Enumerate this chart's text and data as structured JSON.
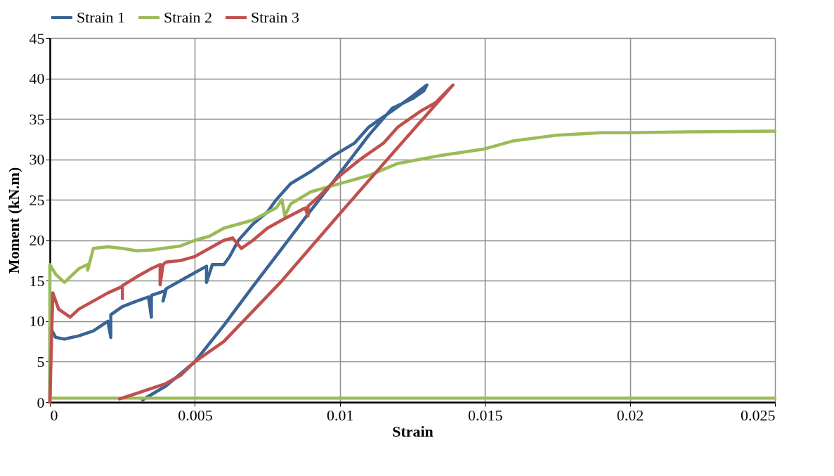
{
  "chart_data": {
    "type": "line",
    "xlabel": "Strain",
    "ylabel": "Moment (kN.m)",
    "xlim": [
      0,
      0.025
    ],
    "ylim": [
      0,
      45
    ],
    "xticks": [
      0,
      0.005,
      0.01,
      0.015,
      0.02,
      0.025
    ],
    "yticks": [
      0,
      5,
      10,
      15,
      20,
      25,
      30,
      35,
      40,
      45
    ],
    "grid": true,
    "legend": "top",
    "series": [
      {
        "name": "Strain 1",
        "color": "#3a6496",
        "x": [
          0,
          0,
          0.0002,
          0.0005,
          0.001,
          0.0015,
          0.002,
          0.0021,
          0.0021,
          0.0025,
          0.003,
          0.0034,
          0.0035,
          0.0035,
          0.004,
          0.0039,
          0.004,
          0.0045,
          0.005,
          0.0054,
          0.0054,
          0.0056,
          0.006,
          0.0062,
          0.0065,
          0.007,
          0.0072,
          0.0075,
          0.0078,
          0.0083,
          0.009,
          0.0098,
          0.0105,
          0.011,
          0.0118,
          0.0125,
          0.013,
          0.0129,
          0.0125,
          0.0118,
          0.011,
          0.01,
          0.009,
          0.008,
          0.007,
          0.006,
          0.005,
          0.0045,
          0.004,
          0.0032
        ],
        "values": [
          0,
          9.3,
          8,
          7.8,
          8.2,
          8.8,
          10,
          8,
          10.8,
          11.8,
          12.5,
          13,
          10.5,
          13.2,
          13.8,
          12.5,
          14,
          15,
          16,
          16.8,
          14.8,
          17,
          17,
          18,
          20,
          22,
          22.6,
          23.5,
          25,
          27,
          28.5,
          30.5,
          32,
          34,
          36,
          37.8,
          39.2,
          38.5,
          37.5,
          36.3,
          33,
          28.3,
          23.7,
          19,
          14.3,
          9.5,
          5,
          3.5,
          2,
          0.3
        ]
      },
      {
        "name": "Strain 2",
        "color": "#9bbb59",
        "x": [
          0.025,
          0,
          0,
          0.0002,
          0.0005,
          0.001,
          0.0013,
          0.0013,
          0.0015,
          0.002,
          0.0025,
          0.003,
          0.0035,
          0.0045,
          0.005,
          0.0055,
          0.006,
          0.007,
          0.0078,
          0.008,
          0.0081,
          0.0083,
          0.009,
          0.01,
          0.011,
          0.012,
          0.0135,
          0.015,
          0.016,
          0.0175,
          0.019,
          0.02,
          0.022,
          0.025
        ],
        "values": [
          0.5,
          0.5,
          17,
          15.8,
          14.8,
          16.5,
          17,
          16.3,
          19,
          19.2,
          19,
          18.7,
          18.8,
          19.3,
          20,
          20.5,
          21.5,
          22.5,
          24,
          25,
          23,
          24.5,
          26,
          27,
          28,
          29.5,
          30.5,
          31.3,
          32.3,
          33,
          33.3,
          33.3,
          33.4,
          33.5
        ]
      },
      {
        "name": "Strain 3",
        "color": "#c0504d",
        "x": [
          0,
          0.0001,
          0.0003,
          0.0007,
          0.001,
          0.0015,
          0.002,
          0.0025,
          0.0025,
          0.0025,
          0.003,
          0.0035,
          0.0038,
          0.0038,
          0.0039,
          0.004,
          0.0045,
          0.005,
          0.0055,
          0.006,
          0.0063,
          0.0066,
          0.007,
          0.0075,
          0.008,
          0.0088,
          0.0089,
          0.0089,
          0.0093,
          0.01,
          0.0107,
          0.0115,
          0.012,
          0.0128,
          0.0133,
          0.0139,
          0.012,
          0.01,
          0.008,
          0.006,
          0.005,
          0.0045,
          0.004,
          0.003,
          0.0024
        ],
        "values": [
          0,
          13.5,
          11.5,
          10.5,
          11.5,
          12.5,
          13.5,
          14.3,
          12.8,
          14.4,
          15.5,
          16.5,
          17,
          14.5,
          17,
          17.3,
          17.5,
          18,
          19,
          20,
          20.3,
          19,
          20,
          21.5,
          22.5,
          24,
          23,
          24.2,
          25.5,
          28,
          30,
          32,
          34,
          36,
          37,
          39.2,
          31.5,
          23.3,
          15,
          7.5,
          5,
          3.3,
          2.3,
          1.1,
          0.4
        ]
      }
    ]
  }
}
